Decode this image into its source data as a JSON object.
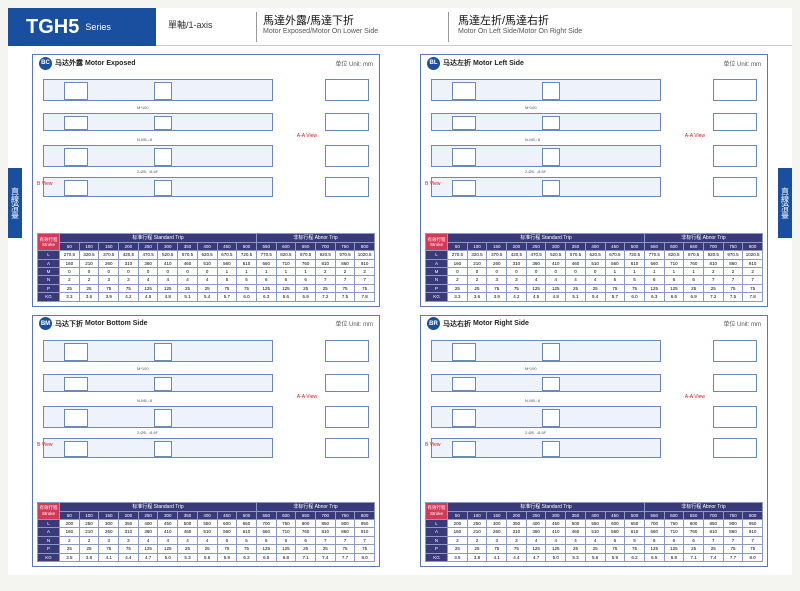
{
  "header": {
    "series": "TGH5",
    "series_sub": "Series",
    "axis": "單軸/1-axis",
    "title1_cn": "馬達外露/馬達下折",
    "title1_en": "Motor Exposed/Motor On Lower Side",
    "title2_cn": "馬達左折/馬達右折",
    "title2_en": "Motor On Left Side/Motor On Right Side"
  },
  "side_tab": "直線滑臺",
  "panels": [
    {
      "badge": "BC",
      "title_cn": "马达外露",
      "title_en": "Motor Exposed",
      "unit": "单位 Unit: mm",
      "red_label_a": "A-A View",
      "red_label_b": "B View"
    },
    {
      "badge": "BL",
      "title_cn": "马达左折",
      "title_en": "Motor Left Side",
      "unit": "单位 Unit: mm",
      "red_label_a": "A-A View",
      "red_label_b": "B View"
    },
    {
      "badge": "BM",
      "title_cn": "马达下折",
      "title_en": "Motor Bottom Side",
      "unit": "单位 Unit: mm",
      "red_label_a": "A-A View",
      "red_label_b": "B View"
    },
    {
      "badge": "BR",
      "title_cn": "马达右折",
      "title_en": "Motor Right Side",
      "unit": "单位 Unit: mm",
      "red_label_a": "A-A View",
      "red_label_b": "B View"
    }
  ],
  "table": {
    "corner": "有效行程\nStroke",
    "group1": "标准行程 Standard Trip",
    "group2": "非标行程 Abnor Trip",
    "strokes": [
      "50",
      "100",
      "150",
      "200",
      "250",
      "300",
      "350",
      "400",
      "450",
      "500",
      "550",
      "600",
      "650",
      "700",
      "750",
      "800"
    ],
    "rows": [
      {
        "h": "L",
        "v": [
          "270.5",
          "320.5",
          "370.5",
          "420.5",
          "470.5",
          "520.5",
          "570.5",
          "620.5",
          "670.5",
          "720.5",
          "770.5",
          "820.5",
          "870.5",
          "920.5",
          "970.5",
          "1020.5"
        ]
      },
      {
        "h": "A",
        "v": [
          "160",
          "210",
          "260",
          "310",
          "360",
          "410",
          "460",
          "510",
          "560",
          "610",
          "660",
          "710",
          "760",
          "810",
          "860",
          "910"
        ]
      },
      {
        "h": "M",
        "v": [
          "0",
          "0",
          "0",
          "0",
          "0",
          "0",
          "0",
          "0",
          "1",
          "1",
          "1",
          "1",
          "1",
          "2",
          "2",
          "2"
        ]
      },
      {
        "h": "N",
        "v": [
          "2",
          "2",
          "3",
          "3",
          "4",
          "4",
          "4",
          "4",
          "5",
          "5",
          "6",
          "6",
          "6",
          "7",
          "7",
          "7"
        ]
      },
      {
        "h": "P",
        "v": [
          "25",
          "25",
          "75",
          "75",
          "125",
          "125",
          "25",
          "25",
          "75",
          "75",
          "125",
          "125",
          "25",
          "25",
          "75",
          "75"
        ]
      },
      {
        "h": "KG",
        "v": [
          "3.3",
          "3.6",
          "3.9",
          "4.2",
          "4.5",
          "4.8",
          "5.1",
          "5.4",
          "5.7",
          "6.0",
          "6.3",
          "6.6",
          "6.9",
          "7.2",
          "7.5",
          "7.8"
        ]
      }
    ]
  },
  "table_bm": {
    "rows": [
      {
        "h": "L",
        "v": [
          "200",
          "250",
          "300",
          "350",
          "400",
          "450",
          "500",
          "550",
          "600",
          "650",
          "700",
          "750",
          "800",
          "850",
          "900",
          "950"
        ]
      },
      {
        "h": "A",
        "v": [
          "160",
          "210",
          "260",
          "310",
          "360",
          "410",
          "460",
          "510",
          "560",
          "610",
          "660",
          "710",
          "760",
          "810",
          "860",
          "910"
        ]
      },
      {
        "h": "N",
        "v": [
          "2",
          "2",
          "3",
          "3",
          "4",
          "4",
          "4",
          "4",
          "5",
          "5",
          "6",
          "6",
          "6",
          "7",
          "7",
          "7"
        ]
      },
      {
        "h": "P",
        "v": [
          "25",
          "25",
          "75",
          "75",
          "125",
          "125",
          "25",
          "25",
          "75",
          "75",
          "125",
          "125",
          "25",
          "25",
          "75",
          "75"
        ]
      },
      {
        "h": "KG",
        "v": [
          "3.5",
          "3.8",
          "4.1",
          "4.4",
          "4.7",
          "5.0",
          "5.3",
          "5.6",
          "5.9",
          "6.2",
          "6.5",
          "6.8",
          "7.1",
          "7.4",
          "7.7",
          "8.0"
        ]
      }
    ]
  },
  "colors": {
    "brand": "#1a4fa0",
    "table_header": "#3a3a7a",
    "table_corner": "#d33a5a",
    "drawing_line": "#6a88b8"
  }
}
